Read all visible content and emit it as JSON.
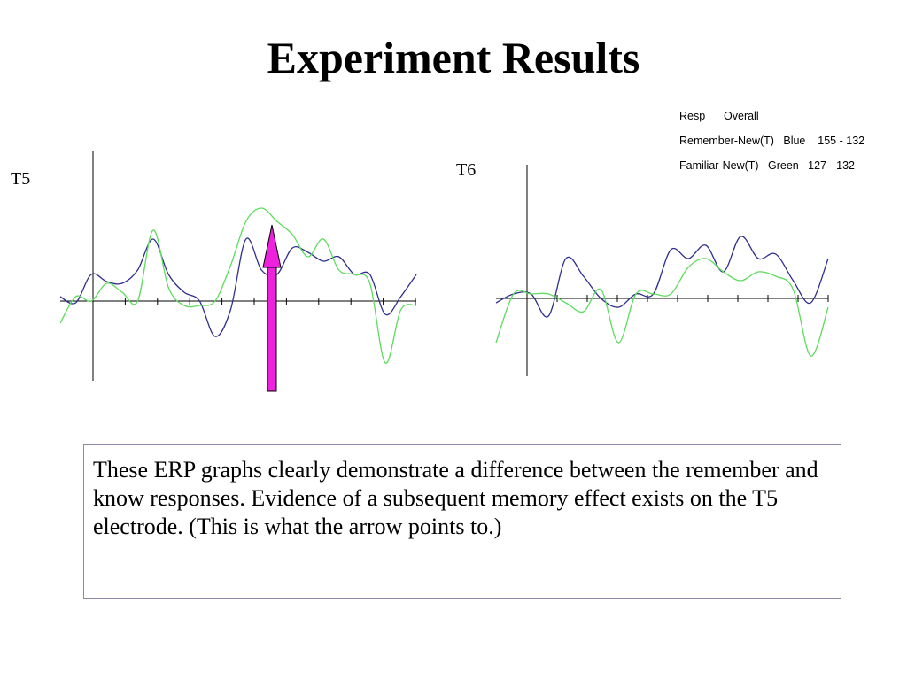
{
  "slide": {
    "title": "Experiment Results",
    "caption": "These ERP graphs clearly demonstrate a difference between the remember and know responses. Evidence of a subsequent memory effect exists on the T5 electrode.  (This is what the arrow points to.)"
  },
  "legend": {
    "header": "Resp      Overall",
    "rows": [
      "Remember-New(T)   Blue    155 - 132",
      "Familiar-New(T)   Green   127 - 132"
    ]
  },
  "colors": {
    "blue": "#2e2e8e",
    "green": "#5cdc5c",
    "arrow": "#ee22dd",
    "axis": "#000000"
  },
  "chart_data": [
    {
      "type": "line",
      "title": "T5",
      "grid": false,
      "x_ticks": 11,
      "ylim": [
        -1.0,
        1.0
      ],
      "series": [
        {
          "color": "blue",
          "values": [
            0.05,
            -0.02,
            0.3,
            0.22,
            0.2,
            0.35,
            0.7,
            0.3,
            0.1,
            0.0,
            -0.4,
            -0.1,
            0.7,
            0.35,
            0.3,
            0.6,
            0.55,
            0.45,
            0.5,
            0.3,
            0.3,
            -0.15,
            0.05,
            0.3
          ]
        },
        {
          "color": "green",
          "values": [
            -0.25,
            0.05,
            0.0,
            0.2,
            0.1,
            0.0,
            0.8,
            0.15,
            -0.05,
            -0.05,
            0.0,
            0.4,
            0.9,
            1.05,
            0.9,
            0.75,
            0.5,
            0.7,
            0.35,
            0.3,
            0.2,
            -0.7,
            -0.1,
            -0.05
          ]
        }
      ],
      "arrow": {
        "at_fraction": 0.5,
        "direction": "up"
      }
    },
    {
      "type": "line",
      "title": "T6",
      "grid": false,
      "x_ticks": 11,
      "ylim": [
        -1.0,
        1.0
      ],
      "series": [
        {
          "color": "blue",
          "values": [
            -0.05,
            0.05,
            0.05,
            -0.2,
            0.45,
            0.25,
            0.0,
            -0.1,
            0.05,
            0.05,
            0.55,
            0.45,
            0.6,
            0.3,
            0.7,
            0.45,
            0.5,
            0.2,
            -0.05,
            0.45
          ]
        },
        {
          "color": "green",
          "values": [
            -0.5,
            0.05,
            0.05,
            0.05,
            -0.05,
            -0.15,
            0.1,
            -0.5,
            0.05,
            0.05,
            0.05,
            0.35,
            0.45,
            0.3,
            0.2,
            0.3,
            0.25,
            0.1,
            -0.65,
            -0.1
          ]
        }
      ]
    }
  ]
}
